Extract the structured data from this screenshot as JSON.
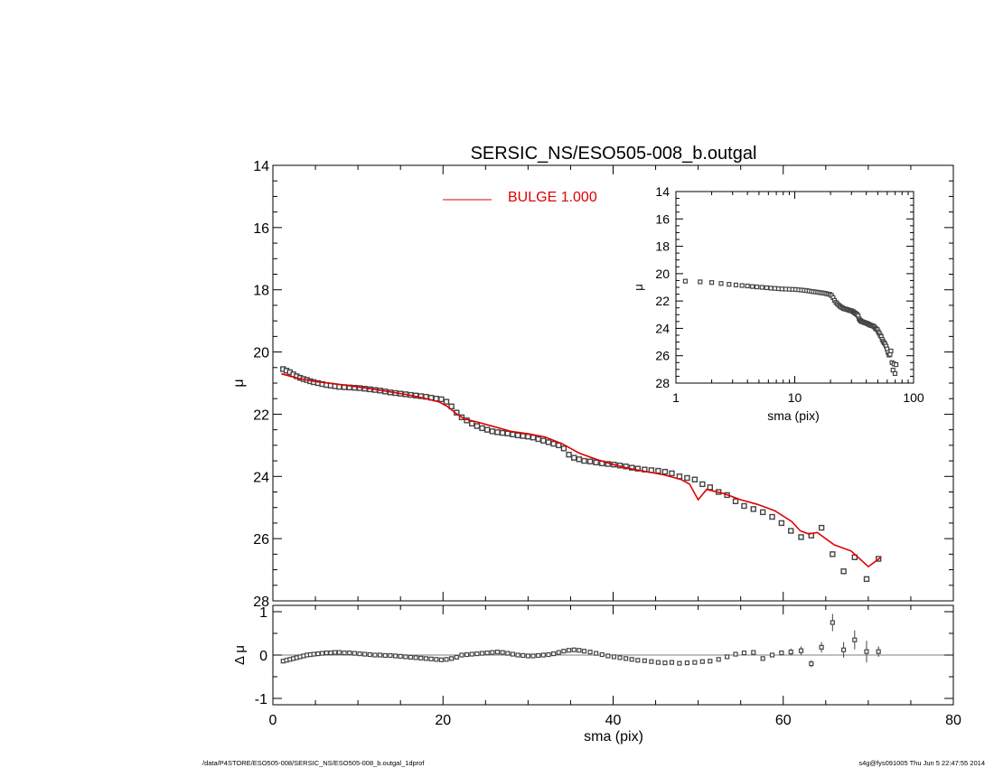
{
  "chart_data": [
    {
      "id": "main",
      "type": "scatter",
      "title": "SERSIC_NS/ESO505-008_b.outgal",
      "ylabel": "μ",
      "xlim": [
        0,
        80
      ],
      "ylim": [
        28,
        14
      ],
      "yticks": [
        "14",
        "16",
        "18",
        "20",
        "22",
        "24",
        "26",
        "28"
      ],
      "legend": {
        "label": "BULGE  1.000",
        "color": "#e00000",
        "placement": "top-center"
      },
      "data_points": {
        "x": [
          1.2,
          1.6,
          2.0,
          2.4,
          2.8,
          3.2,
          3.6,
          4.0,
          4.4,
          4.8,
          5.3,
          5.8,
          6.3,
          6.8,
          7.3,
          7.8,
          8.4,
          9.0,
          9.6,
          10.2,
          10.8,
          11.4,
          12.0,
          12.6,
          13.2,
          13.8,
          14.4,
          15.0,
          15.6,
          16.2,
          16.8,
          17.4,
          18.0,
          18.6,
          19.2,
          19.8,
          20.4,
          21.0,
          21.6,
          22.2,
          22.8,
          23.4,
          24.0,
          24.6,
          25.2,
          25.8,
          26.4,
          27.0,
          27.6,
          28.2,
          28.8,
          29.4,
          30.0,
          30.6,
          31.2,
          31.8,
          32.4,
          33.0,
          33.6,
          34.2,
          34.8,
          35.4,
          36.0,
          36.6,
          37.3,
          38.0,
          38.7,
          39.4,
          40.1,
          40.8,
          41.5,
          42.2,
          42.9,
          43.7,
          44.5,
          45.3,
          46.1,
          46.9,
          47.8,
          48.7,
          49.6,
          50.5,
          51.4,
          52.4,
          53.4,
          54.4,
          55.4,
          56.5,
          57.6,
          58.7,
          59.8,
          60.9,
          62.1,
          63.3,
          64.5,
          65.8,
          67.1,
          68.4,
          69.8,
          71.2
        ],
        "y": [
          20.55,
          20.6,
          20.65,
          20.72,
          20.78,
          20.83,
          20.87,
          20.9,
          20.94,
          20.97,
          21.0,
          21.03,
          21.06,
          21.08,
          21.1,
          21.12,
          21.13,
          21.14,
          21.15,
          21.16,
          21.18,
          21.2,
          21.22,
          21.24,
          21.27,
          21.3,
          21.32,
          21.34,
          21.36,
          21.38,
          21.4,
          21.42,
          21.44,
          21.47,
          21.5,
          21.52,
          21.6,
          21.75,
          21.95,
          22.1,
          22.2,
          22.3,
          22.38,
          22.45,
          22.5,
          22.55,
          22.58,
          22.6,
          22.62,
          22.65,
          22.68,
          22.7,
          22.72,
          22.75,
          22.8,
          22.85,
          22.9,
          22.95,
          23.0,
          23.1,
          23.3,
          23.4,
          23.45,
          23.5,
          23.52,
          23.55,
          23.58,
          23.6,
          23.62,
          23.65,
          23.68,
          23.72,
          23.75,
          23.78,
          23.8,
          23.82,
          23.85,
          23.9,
          24.0,
          24.05,
          24.1,
          24.25,
          24.35,
          24.5,
          24.6,
          24.8,
          24.95,
          25.05,
          25.15,
          25.3,
          25.5,
          25.75,
          25.95,
          25.9,
          25.65,
          26.5,
          27.05,
          26.6,
          27.3,
          26.65
        ]
      },
      "model": {
        "x": [
          1,
          3,
          5,
          8,
          12,
          16,
          18,
          19.5,
          20.5,
          21.5,
          22.5,
          24,
          26,
          28,
          30,
          32,
          34,
          36,
          38,
          40,
          42,
          44,
          46,
          48,
          49,
          50,
          51,
          53,
          55,
          57,
          59,
          61,
          62,
          63,
          64,
          66,
          68,
          70,
          71.5
        ],
        "y": [
          20.7,
          20.85,
          20.95,
          21.05,
          21.2,
          21.38,
          21.5,
          21.6,
          21.75,
          21.97,
          22.15,
          22.25,
          22.4,
          22.55,
          22.63,
          22.73,
          22.95,
          23.25,
          23.45,
          23.62,
          23.75,
          23.85,
          23.95,
          24.1,
          24.25,
          24.75,
          24.42,
          24.55,
          24.75,
          24.9,
          25.1,
          25.45,
          25.75,
          25.85,
          25.8,
          26.2,
          26.4,
          26.9,
          26.6
        ]
      }
    },
    {
      "id": "residual",
      "type": "scatter",
      "xlabel": "sma (pix)",
      "ylabel": "Δ μ",
      "xlim": [
        0,
        80
      ],
      "ylim": [
        -1.1,
        1.1
      ],
      "xticks": [
        "0",
        "20",
        "40",
        "60",
        "80"
      ],
      "yticks": [
        "1",
        "0",
        "-1"
      ],
      "residuals": [
        -0.14,
        -0.12,
        -0.1,
        -0.08,
        -0.06,
        -0.04,
        -0.02,
        0.0,
        0.01,
        0.02,
        0.03,
        0.04,
        0.05,
        0.05,
        0.06,
        0.06,
        0.05,
        0.05,
        0.04,
        0.03,
        0.02,
        0.01,
        0.0,
        0.0,
        -0.01,
        -0.01,
        -0.02,
        -0.03,
        -0.04,
        -0.05,
        -0.06,
        -0.07,
        -0.08,
        -0.09,
        -0.1,
        -0.11,
        -0.1,
        -0.08,
        -0.05,
        0.0,
        0.01,
        0.02,
        0.03,
        0.04,
        0.05,
        0.06,
        0.07,
        0.06,
        0.04,
        0.02,
        0.0,
        -0.01,
        -0.02,
        -0.02,
        -0.01,
        0.0,
        0.01,
        0.03,
        0.06,
        0.09,
        0.11,
        0.12,
        0.11,
        0.09,
        0.07,
        0.04,
        0.01,
        -0.02,
        -0.04,
        -0.06,
        -0.08,
        -0.1,
        -0.12,
        -0.13,
        -0.15,
        -0.17,
        -0.18,
        -0.17,
        -0.19,
        -0.18,
        -0.17,
        -0.15,
        -0.14,
        -0.1,
        -0.04,
        0.02,
        0.05,
        0.06,
        -0.08,
        0.0,
        0.05,
        0.07,
        0.1,
        -0.2,
        0.18,
        0.75,
        0.12,
        0.35,
        0.08,
        0.08
      ],
      "error_bars": [
        0,
        0,
        0,
        0,
        0,
        0,
        0,
        0,
        0,
        0,
        0,
        0,
        0,
        0,
        0,
        0,
        0,
        0,
        0,
        0,
        0,
        0,
        0,
        0,
        0,
        0,
        0,
        0,
        0,
        0,
        0,
        0,
        0,
        0,
        0,
        0,
        0,
        0,
        0,
        0,
        0,
        0,
        0,
        0,
        0,
        0,
        0,
        0,
        0,
        0,
        0,
        0,
        0,
        0,
        0,
        0,
        0,
        0,
        0,
        0,
        0,
        0,
        0,
        0,
        0,
        0,
        0,
        0,
        0,
        0,
        0,
        0,
        0,
        0,
        0,
        0,
        0,
        0,
        0,
        0,
        0,
        0,
        0,
        0,
        0,
        0,
        0,
        0,
        0.05,
        0.05,
        0.06,
        0.08,
        0.1,
        0.08,
        0.12,
        0.2,
        0.18,
        0.22,
        0.25,
        0.12
      ]
    },
    {
      "id": "inset",
      "type": "scatter",
      "xlabel": "sma (pix)",
      "ylabel": "μ",
      "xscale": "log",
      "xlim": [
        1,
        100
      ],
      "ylim": [
        28,
        14
      ],
      "xticks": [
        "1",
        "10",
        "100"
      ],
      "yticks": [
        "14",
        "16",
        "18",
        "20",
        "22",
        "24",
        "26",
        "28"
      ]
    }
  ],
  "footer": {
    "left": "/data/P4STORE/ESO505-008/SERSIC_NS/ESO505-008_b.outgal_1dprof",
    "right": "s4g@fys091005  Thu Jun  5 22:47:55 2014"
  }
}
